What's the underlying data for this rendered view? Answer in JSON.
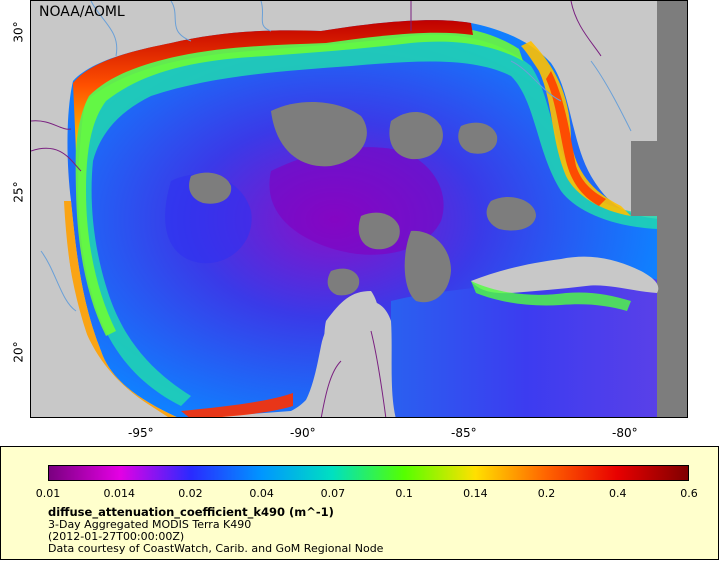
{
  "credit": "NOAA/AOML",
  "axes": {
    "x_ticks": [
      "-95°",
      "-90°",
      "-85°",
      "-80°"
    ],
    "y_ticks": [
      "30°",
      "25°",
      "20°"
    ]
  },
  "legend": {
    "tick_labels": [
      "0.01",
      "0.014",
      "0.02",
      "0.04",
      "0.07",
      "0.1",
      "0.14",
      "0.2",
      "0.4",
      "0.6"
    ],
    "colors": [
      "#7a0080",
      "#e400e4",
      "#2a2aff",
      "#0096ff",
      "#00e0c0",
      "#55ff00",
      "#ffe000",
      "#ff6400",
      "#e80000",
      "#800000"
    ],
    "variable": "diffuse_attenuation_coefficient_k490 (m^-1)",
    "dataset": "3-Day Aggregated MODIS Terra K490",
    "time": "(2012-01-27T00:00:00Z)",
    "source": "Data courtesy of CoastWatch, Carib. and GoM Regional Node"
  },
  "map_colors": {
    "land": "#c8c8c8",
    "nodata": "#7d7d7d",
    "river": "#6aa0d8",
    "border": "#7a2080"
  }
}
